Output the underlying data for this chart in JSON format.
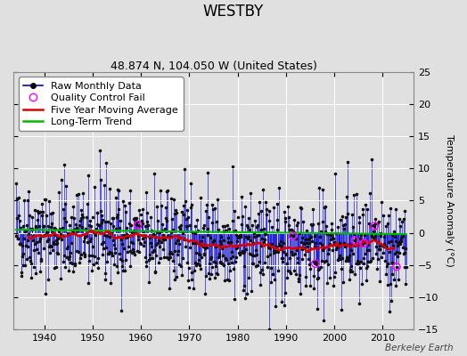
{
  "title": "WESTBY",
  "subtitle": "48.874 N, 104.050 W (United States)",
  "ylabel": "Temperature Anomaly (°C)",
  "watermark": "Berkeley Earth",
  "xlim": [
    1933.5,
    2016.5
  ],
  "ylim": [
    -15,
    25
  ],
  "yticks": [
    -15,
    -10,
    -5,
    0,
    5,
    10,
    15,
    20,
    25
  ],
  "xticks": [
    1940,
    1950,
    1960,
    1970,
    1980,
    1990,
    2000,
    2010
  ],
  "year_start": 1934,
  "year_end": 2014,
  "seed": 42,
  "background_color": "#e0e0e0",
  "plot_bg_color": "#e0e0e0",
  "raw_line_color": "#0000dd",
  "raw_dot_color": "#111111",
  "ma_color": "#dd0000",
  "trend_color": "#00bb00",
  "qc_fail_color": "#ff00ff",
  "grid_color": "#ffffff",
  "title_fontsize": 12,
  "subtitle_fontsize": 9,
  "label_fontsize": 8,
  "tick_fontsize": 8,
  "legend_fontsize": 8
}
